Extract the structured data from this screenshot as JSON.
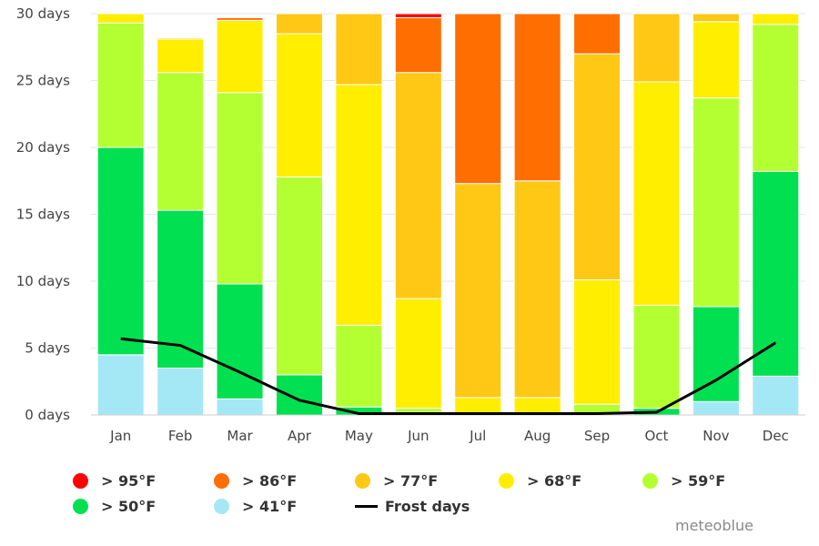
{
  "chart_data": {
    "type": "bar",
    "stacked": true,
    "categories": [
      "Jan",
      "Feb",
      "Mar",
      "Apr",
      "May",
      "Jun",
      "Jul",
      "Aug",
      "Sep",
      "Oct",
      "Nov",
      "Dec"
    ],
    "y_tick_labels": [
      "0 days",
      "5 days",
      "10 days",
      "15 days",
      "20 days",
      "25 days",
      "30 days"
    ],
    "y_ticks": [
      0,
      5,
      10,
      15,
      20,
      25,
      30
    ],
    "ylim": [
      0,
      30
    ],
    "grid": true,
    "legend_position": "bottom",
    "series": [
      {
        "name": "> 41°F",
        "color": "#a5e8f5",
        "values": [
          4.5,
          3.5,
          1.2,
          0,
          0,
          0,
          0,
          0,
          0,
          0,
          1,
          2.9
        ]
      },
      {
        "name": "> 50°F",
        "color": "#00e050",
        "values": [
          15.5,
          11.8,
          8.6,
          3,
          0.6,
          0.2,
          0,
          0,
          0,
          0.5,
          7.1,
          15.3
        ]
      },
      {
        "name": "> 59°F",
        "color": "#b4ff32",
        "values": [
          9.3,
          10.3,
          14.3,
          14.8,
          6.1,
          0.3,
          0,
          0,
          0.8,
          7.7,
          15.6,
          11
        ]
      },
      {
        "name": "> 68°F",
        "color": "#ffee00",
        "values": [
          0.7,
          2.5,
          5.4,
          10.7,
          18,
          8.2,
          1.3,
          1.3,
          9.3,
          16.7,
          5.7,
          0.8
        ]
      },
      {
        "name": "> 77°F",
        "color": "#ffc814",
        "values": [
          0,
          0.1,
          0,
          1.5,
          5.3,
          16.9,
          16,
          16.2,
          16.9,
          5.1,
          0.6,
          0
        ],
        "overflow": [
          0,
          0,
          0,
          1,
          1,
          0,
          0,
          0,
          0,
          1,
          0,
          0
        ]
      },
      {
        "name": "> 86°F",
        "color": "#ff6e00",
        "values": [
          0,
          0,
          0.2,
          0,
          0,
          4.1,
          12.7,
          12.5,
          3,
          0,
          0.6,
          0
        ]
      },
      {
        "name": "> 95°F",
        "color": "#ff0000",
        "values": [
          0,
          0,
          0,
          0,
          0,
          0.3,
          0,
          0,
          0,
          0,
          0,
          0
        ]
      }
    ],
    "line_series": {
      "name": "Frost days",
      "color": "#000000",
      "values": [
        5.7,
        5.2,
        3.2,
        1.1,
        0.1,
        0.1,
        0.1,
        0.1,
        0.1,
        0.2,
        2.6,
        5.4
      ]
    }
  },
  "legend": {
    "row1": [
      {
        "label": "> 95°F",
        "color": "#ff0000"
      },
      {
        "label": "> 86°F",
        "color": "#ff6e00"
      },
      {
        "label": "> 77°F",
        "color": "#ffc814"
      },
      {
        "label": "> 68°F",
        "color": "#ffee00"
      },
      {
        "label": "> 59°F",
        "color": "#b4ff32"
      }
    ],
    "row2": [
      {
        "label": "> 50°F",
        "color": "#00e050"
      },
      {
        "label": "> 41°F",
        "color": "#a5e8f5"
      }
    ],
    "line_label": "Frost days"
  },
  "credit": "meteoblue"
}
